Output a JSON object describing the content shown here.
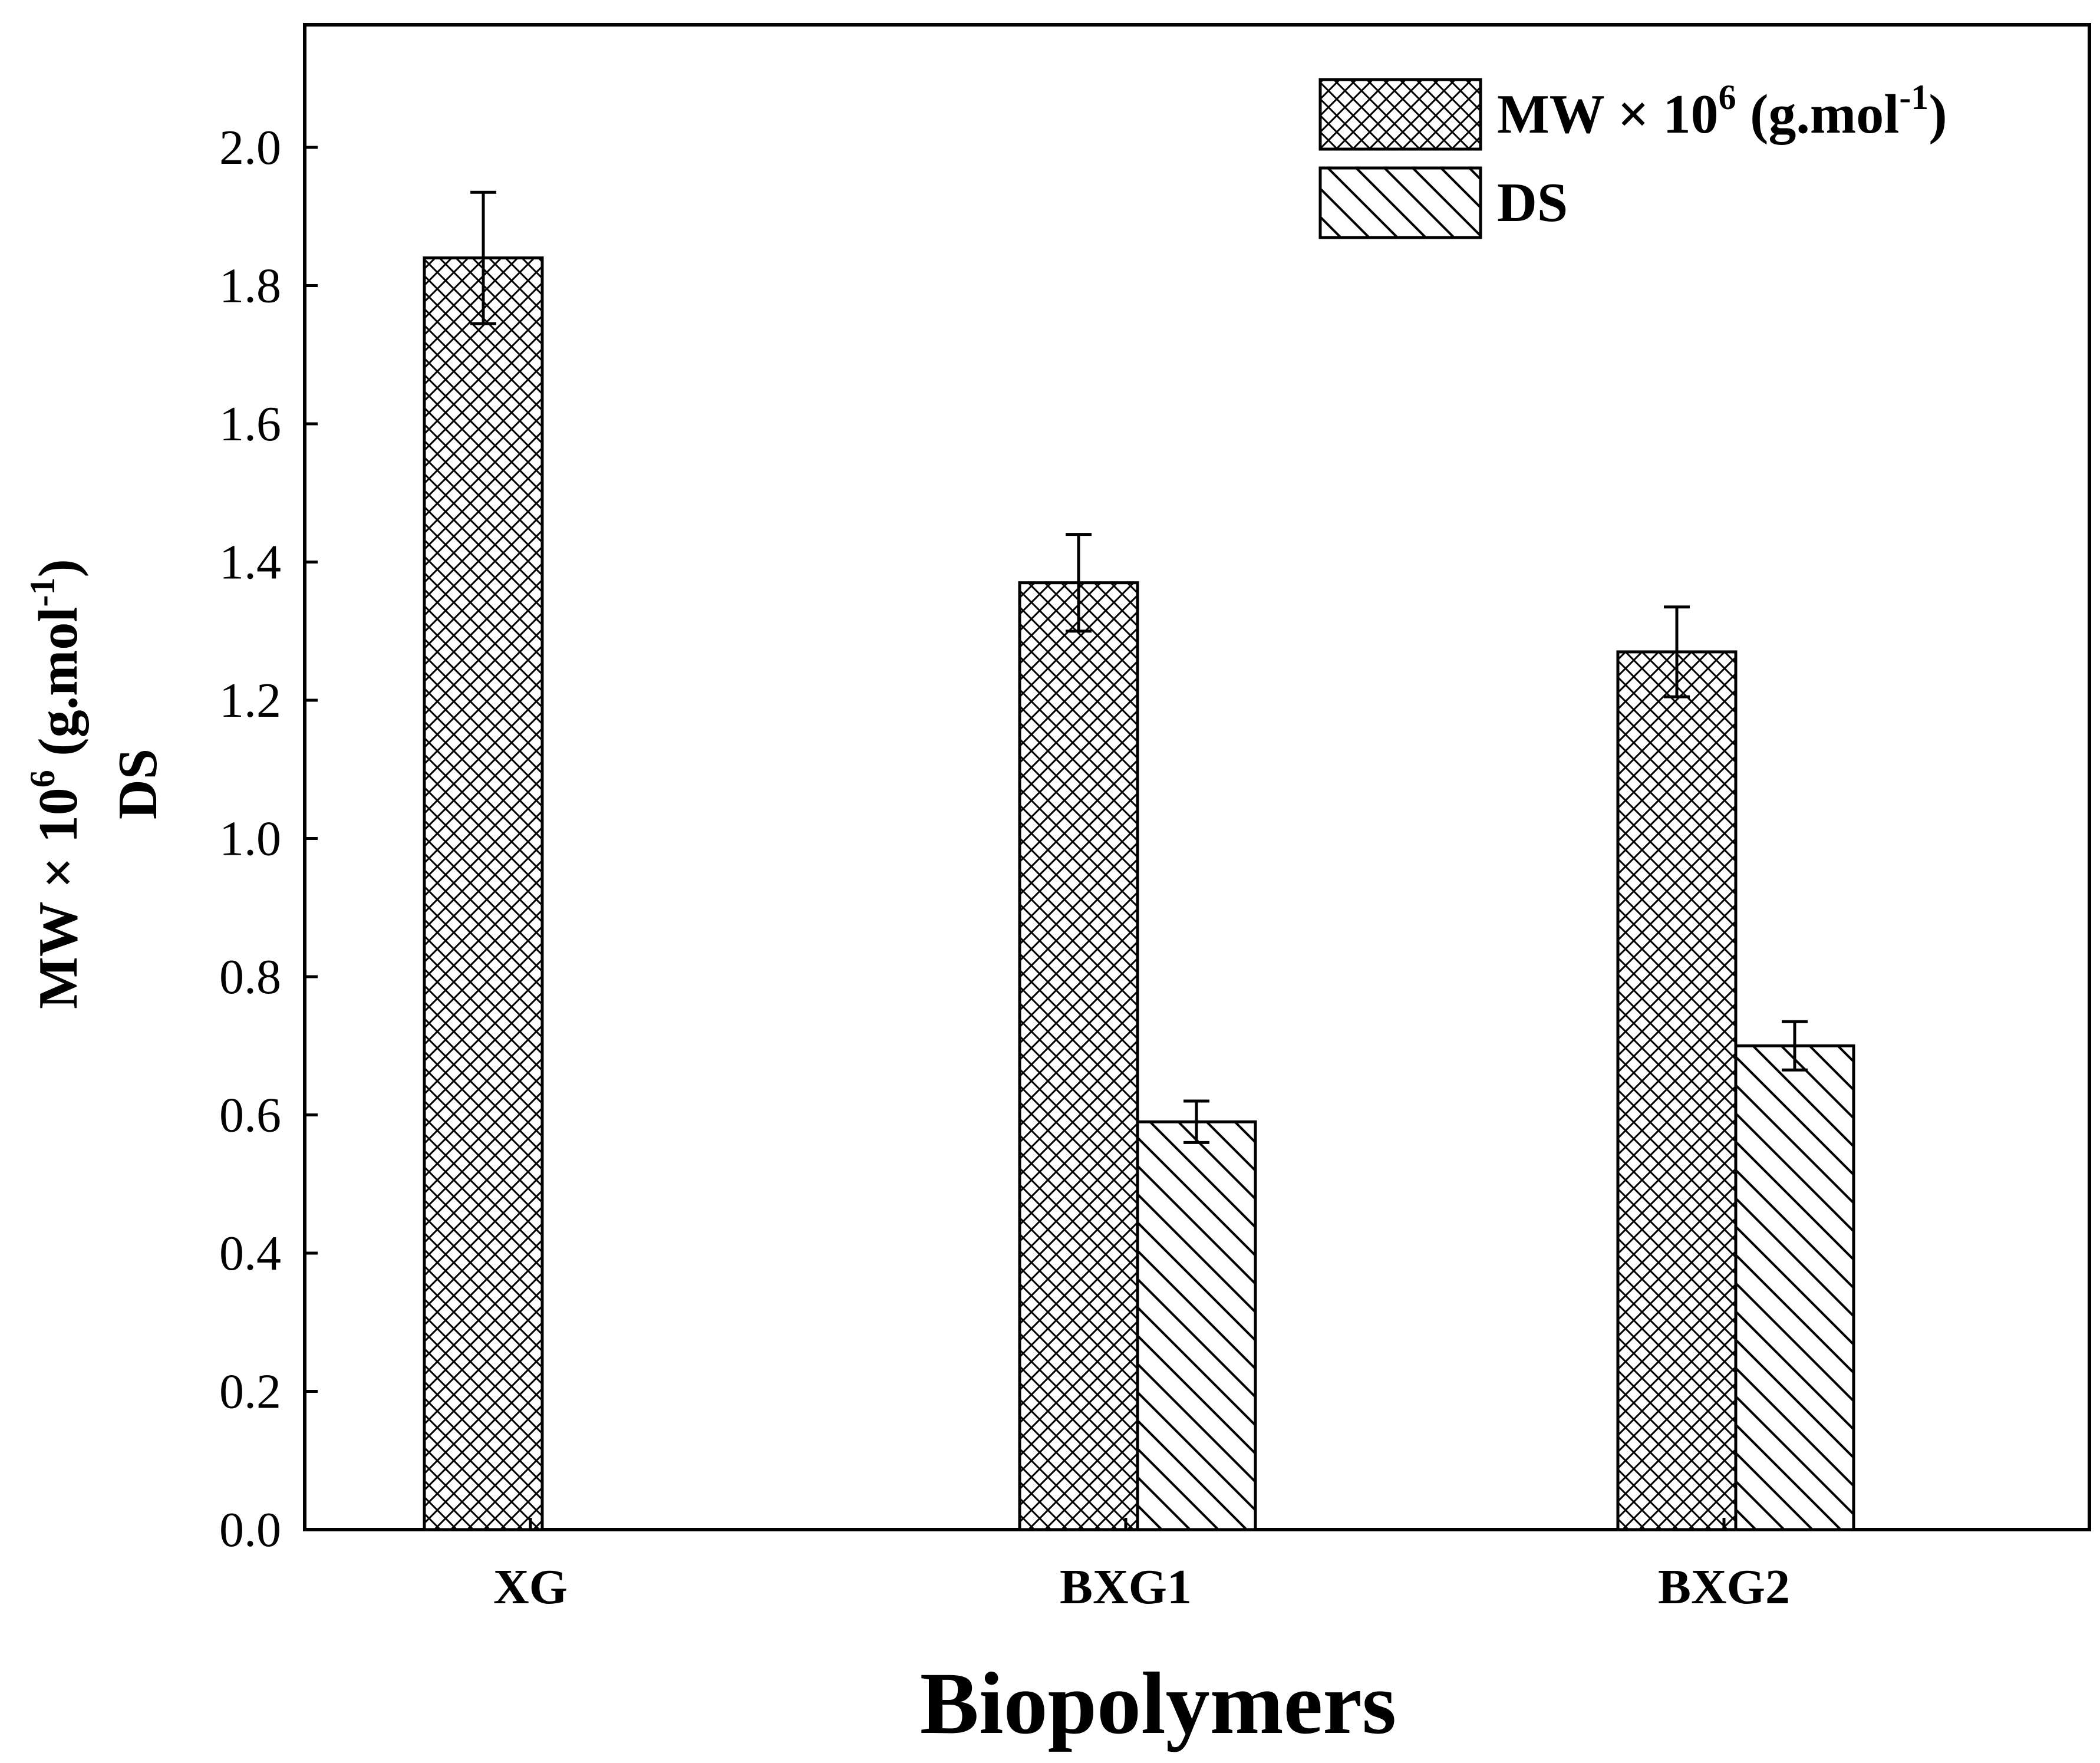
{
  "chart_data": {
    "type": "bar",
    "categories": [
      "XG",
      "BXG1",
      "BXG2"
    ],
    "series": [
      {
        "name": "MW × 10^6 (g.mol^-1)",
        "pattern": "crosshatch",
        "values": [
          1.84,
          1.37,
          1.27
        ],
        "errors": [
          0.095,
          0.07,
          0.065
        ]
      },
      {
        "name": "DS",
        "pattern": "diagonal",
        "values": [
          null,
          0.59,
          0.7
        ],
        "errors": [
          null,
          0.03,
          0.035
        ]
      }
    ],
    "xlabel": "Biopolymers",
    "ylabel": {
      "line1_main": "MW × 10",
      "line1_sup": "6",
      "line1_mid": " (g.mol",
      "line1_sup2": "-1",
      "line1_end": ")",
      "line2": "DS"
    },
    "legend": [
      {
        "main": "MW × 10",
        "sup": "6",
        "mid": " (g.mol",
        "sup2": "-1",
        "end": ")"
      },
      {
        "main": "DS"
      }
    ],
    "ylim": [
      0,
      2.2
    ],
    "yticks": [
      "0.0",
      "0.2",
      "0.4",
      "0.6",
      "0.8",
      "1.0",
      "1.2",
      "1.4",
      "1.6",
      "1.8",
      "2.0"
    ],
    "grid": false,
    "legend_position": "top-right"
  }
}
